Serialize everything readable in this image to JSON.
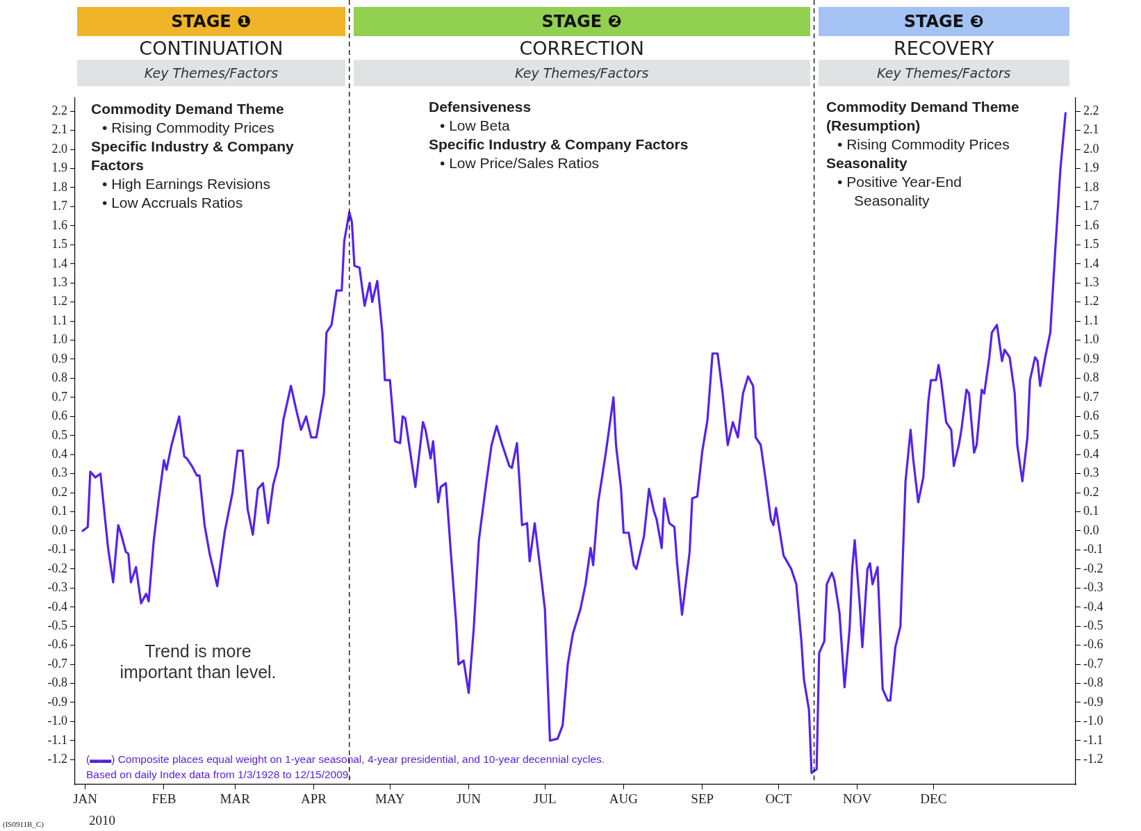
{
  "chart_data": {
    "type": "line",
    "xlim": [
      "2009-12-28",
      "2011-01-26"
    ],
    "ylim": [
      -1.33,
      2.27
    ],
    "y2lim": [
      -1.33,
      2.27
    ],
    "xticks": [
      {
        "value": "2010-01-01",
        "label": "JAN"
      },
      {
        "value": "2010-02-01",
        "label": "FEB"
      },
      {
        "value": "2010-03-01",
        "label": "MAR"
      },
      {
        "value": "2010-04-01",
        "label": "APR"
      },
      {
        "value": "2010-05-01",
        "label": "MAY"
      },
      {
        "value": "2010-06-01",
        "label": "JUN"
      },
      {
        "value": "2010-07-01",
        "label": "JUL"
      },
      {
        "value": "2010-08-01",
        "label": "AUG"
      },
      {
        "value": "2010-09-01",
        "label": "SEP"
      },
      {
        "value": "2010-10-01",
        "label": "OCT"
      },
      {
        "value": "2010-11-01",
        "label": "NOV"
      },
      {
        "value": "2010-12-01",
        "label": "DEC"
      }
    ],
    "yticks": [
      -1.2,
      -1.1,
      {
        "value": -1,
        "label": "-1.0"
      },
      -0.9,
      -0.8,
      -0.7,
      -0.6,
      -0.5,
      -0.4,
      -0.3,
      -0.2,
      -0.1,
      {
        "value": 0,
        "label": "0.0"
      },
      0.1,
      0.2,
      0.3,
      0.4,
      0.5,
      0.6,
      0.7,
      0.8,
      0.9,
      {
        "value": 1,
        "label": "1.0"
      },
      1.1,
      1.2,
      1.3,
      1.4,
      1.5,
      1.6,
      1.7,
      1.8,
      1.9,
      {
        "value": 2,
        "label": "2.0"
      },
      2.1,
      2.2
    ],
    "y2ticks": [
      -1.2,
      -1.1,
      {
        "value": -1,
        "label": "-1.0"
      },
      -0.9,
      -0.8,
      -0.7,
      -0.6,
      -0.5,
      -0.4,
      -0.3,
      -0.2,
      -0.1,
      {
        "value": 0,
        "label": "0.0"
      },
      0.1,
      0.2,
      0.3,
      0.4,
      0.5,
      0.6,
      0.7,
      0.8,
      0.9,
      {
        "value": 1,
        "label": "1.0"
      },
      1.1,
      1.2,
      1.3,
      1.4,
      1.5,
      1.6,
      1.7,
      1.8,
      1.9,
      {
        "value": 2,
        "label": "2.0"
      },
      2.1,
      2.2
    ],
    "grid": false,
    "legend": false,
    "marker": "none",
    "line_style": "solid",
    "ref_lines": [
      {
        "axis": "x",
        "value": "2010-04-15",
        "line_style": "dashed",
        "color": "#000000"
      },
      {
        "axis": "x",
        "value": "2010-10-15",
        "line_style": "dashed",
        "color": "#000000"
      }
    ],
    "series": [
      {
        "color": "#5522ee",
        "x": [
          "2009-12-31",
          "2010-01-02",
          "2010-01-03",
          "2010-01-05",
          "2010-01-07",
          "2010-01-08",
          "2010-01-10",
          "2010-01-12",
          "2010-01-14",
          "2010-01-15",
          "2010-01-17",
          "2010-01-18",
          "2010-01-19",
          "2010-01-21",
          "2010-01-23",
          "2010-01-25",
          "2010-01-26",
          "2010-01-28",
          "2010-01-30",
          "2010-02-01",
          "2010-02-02",
          "2010-02-04",
          "2010-02-07",
          "2010-02-09",
          "2010-02-10",
          "2010-02-12",
          "2010-02-14",
          "2010-02-15",
          "2010-02-17",
          "2010-02-19",
          "2010-02-22",
          "2010-02-25",
          "2010-02-28",
          "2010-03-02",
          "2010-03-04",
          "2010-03-06",
          "2010-03-08",
          "2010-03-10",
          "2010-03-12",
          "2010-03-14",
          "2010-03-16",
          "2010-03-18",
          "2010-03-20",
          "2010-03-23",
          "2010-03-25",
          "2010-03-27",
          "2010-03-29",
          "2010-03-31",
          "2010-04-02",
          "2010-04-05",
          "2010-04-06",
          "2010-04-08",
          "2010-04-10",
          "2010-04-12",
          "2010-04-13",
          "2010-04-15",
          "2010-04-16",
          "2010-04-17",
          "2010-04-19",
          "2010-04-21",
          "2010-04-23",
          "2010-04-24",
          "2010-04-26",
          "2010-04-28",
          "2010-04-29",
          "2010-05-01",
          "2010-05-03",
          "2010-05-05",
          "2010-05-06",
          "2010-05-07",
          "2010-05-09",
          "2010-05-11",
          "2010-05-14",
          "2010-05-15",
          "2010-05-17",
          "2010-05-18",
          "2010-05-20",
          "2010-05-21",
          "2010-05-23",
          "2010-05-25",
          "2010-05-27",
          "2010-05-28",
          "2010-05-30",
          "2010-06-01",
          "2010-06-03",
          "2010-06-05",
          "2010-06-08",
          "2010-06-10",
          "2010-06-12",
          "2010-06-14",
          "2010-06-17",
          "2010-06-18",
          "2010-06-20",
          "2010-06-21",
          "2010-06-22",
          "2010-06-24",
          "2010-06-25",
          "2010-06-27",
          "2010-06-29",
          "2010-07-01",
          "2010-07-03",
          "2010-07-06",
          "2010-07-08",
          "2010-07-10",
          "2010-07-12",
          "2010-07-15",
          "2010-07-17",
          "2010-07-19",
          "2010-07-20",
          "2010-07-22",
          "2010-07-25",
          "2010-07-28",
          "2010-07-29",
          "2010-07-31",
          "2010-08-01",
          "2010-08-03",
          "2010-08-05",
          "2010-08-06",
          "2010-08-09",
          "2010-08-11",
          "2010-08-13",
          "2010-08-14",
          "2010-08-16",
          "2010-08-17",
          "2010-08-19",
          "2010-08-21",
          "2010-08-22",
          "2010-08-24",
          "2010-08-27",
          "2010-08-28",
          "2010-08-30",
          "2010-09-01",
          "2010-09-03",
          "2010-09-05",
          "2010-09-07",
          "2010-09-09",
          "2010-09-11",
          "2010-09-13",
          "2010-09-15",
          "2010-09-17",
          "2010-09-19",
          "2010-09-21",
          "2010-09-22",
          "2010-09-24",
          "2010-09-26",
          "2010-09-28",
          "2010-09-29",
          "2010-09-30",
          "2010-10-03",
          "2010-10-06",
          "2010-10-08",
          "2010-10-10",
          "2010-10-11",
          "2010-10-13",
          "2010-10-14",
          "2010-10-16",
          "2010-10-17",
          "2010-10-19",
          "2010-10-20",
          "2010-10-22",
          "2010-10-23",
          "2010-10-25",
          "2010-10-27",
          "2010-10-29",
          "2010-10-30",
          "2010-10-31",
          "2010-11-02",
          "2010-11-03",
          "2010-11-05",
          "2010-11-06",
          "2010-11-07",
          "2010-11-09",
          "2010-11-11",
          "2010-11-13",
          "2010-11-14",
          "2010-11-16",
          "2010-11-18",
          "2010-11-20",
          "2010-11-22",
          "2010-11-23",
          "2010-11-25",
          "2010-11-27",
          "2010-11-29",
          "2010-11-30",
          "2010-12-02",
          "2010-12-03",
          "2010-12-04",
          "2010-12-06",
          "2010-12-08",
          "2010-12-09",
          "2010-12-11",
          "2010-12-12",
          "2010-12-14",
          "2010-12-15",
          "2010-12-17",
          "2010-12-18",
          "2010-12-20",
          "2010-12-21",
          "2010-12-23",
          "2010-12-24",
          "2010-12-26",
          "2010-12-28",
          "2010-12-29",
          "2010-12-31",
          "2011-01-02",
          "2011-01-03",
          "2011-01-05",
          "2011-01-07",
          "2011-01-08",
          "2011-01-10",
          "2011-01-11",
          "2011-01-12",
          "2011-01-14",
          "2011-01-16",
          "2011-01-18",
          "2011-01-20",
          "2011-01-22"
        ],
        "values": [
          0,
          0.02,
          0.31,
          0.28,
          0.3,
          0.17,
          -0.09,
          -0.27,
          0.03,
          -0.01,
          -0.11,
          -0.12,
          -0.27,
          -0.19,
          -0.38,
          -0.33,
          -0.37,
          -0.05,
          0.17,
          0.37,
          0.32,
          0.45,
          0.6,
          0.39,
          0.38,
          0.34,
          0.29,
          0.29,
          0.03,
          -0.12,
          -0.29,
          0,
          0.2,
          0.42,
          0.42,
          0.11,
          -0.02,
          0.22,
          0.25,
          0.04,
          0.24,
          0.34,
          0.58,
          0.76,
          0.64,
          0.53,
          0.6,
          0.49,
          0.49,
          0.72,
          1.04,
          1.08,
          1.26,
          1.26,
          1.52,
          1.67,
          1.62,
          1.39,
          1.38,
          1.18,
          1.3,
          1.2,
          1.31,
          1.04,
          0.79,
          0.79,
          0.47,
          0.46,
          0.6,
          0.59,
          0.41,
          0.23,
          0.57,
          0.53,
          0.38,
          0.47,
          0.15,
          0.23,
          0.25,
          -0.12,
          -0.47,
          -0.7,
          -0.68,
          -0.85,
          -0.51,
          -0.05,
          0.26,
          0.45,
          0.55,
          0.46,
          0.34,
          0.33,
          0.46,
          0.26,
          0.03,
          0.04,
          -0.16,
          0.04,
          -0.18,
          -0.41,
          -1.1,
          -1.09,
          -1.02,
          -0.7,
          -0.54,
          -0.41,
          -0.28,
          -0.09,
          -0.18,
          0.15,
          0.41,
          0.7,
          0.45,
          0.22,
          -0.01,
          -0.01,
          -0.18,
          -0.2,
          -0.03,
          0.22,
          0.1,
          0.06,
          -0.09,
          0.17,
          0.04,
          0.02,
          -0.16,
          -0.44,
          -0.11,
          0.17,
          0.18,
          0.42,
          0.58,
          0.93,
          0.93,
          0.72,
          0.45,
          0.57,
          0.49,
          0.72,
          0.81,
          0.76,
          0.49,
          0.45,
          0.26,
          0.06,
          0.03,
          0.12,
          -0.13,
          -0.2,
          -0.28,
          -0.58,
          -0.78,
          -0.94,
          -1.27,
          -1.25,
          -0.64,
          -0.58,
          -0.28,
          -0.22,
          -0.26,
          -0.43,
          -0.82,
          -0.51,
          -0.2,
          -0.05,
          -0.39,
          -0.61,
          -0.2,
          -0.17,
          -0.28,
          -0.19,
          -0.83,
          -0.89,
          -0.89,
          -0.61,
          -0.5,
          0.26,
          0.53,
          0.38,
          0.15,
          0.28,
          0.68,
          0.79,
          0.79,
          0.87,
          0.79,
          0.57,
          0.53,
          0.34,
          0.45,
          0.53,
          0.74,
          0.72,
          0.41,
          0.45,
          0.74,
          0.72,
          0.91,
          1.04,
          1.08,
          0.89,
          0.95,
          0.91,
          0.72,
          0.45,
          0.26,
          0.49,
          0.79,
          0.91,
          0.89,
          0.76,
          0.91,
          1.04,
          1.48,
          1.9,
          2.19
        ]
      }
    ],
    "annotations": [
      "STAGE ❶",
      "CONTINUATION",
      "Key Themes/Factors",
      "STAGE ❷",
      "CORRECTION",
      "Key Themes/Factors",
      "STAGE ❸",
      "RECOVERY",
      "Key Themes/Factors",
      "Commodity Demand Theme",
      "• Rising Commodity Prices",
      "Specific Industry & Company Factors",
      "• High Earnings Revisions",
      "• Low Accruals Ratios",
      "Defensiveness",
      "• Low Beta",
      "Specific Industry & Company Factors",
      "• Low Price/Sales Ratios",
      "Commodity Demand Theme (Resumption)",
      "• Rising Commodity Prices",
      "Seasonality",
      "• Positive Year-End Seasonality",
      "Trend is more important than level.",
      "(▬▬) Composite places equal weight on 1-year seasonal, 4-year presidential, and 10-year decennial cycles. Based on daily Index data from 1/3/1928 to 12/15/2009.",
      "2010",
      "(IS0911B_C)"
    ]
  }
}
